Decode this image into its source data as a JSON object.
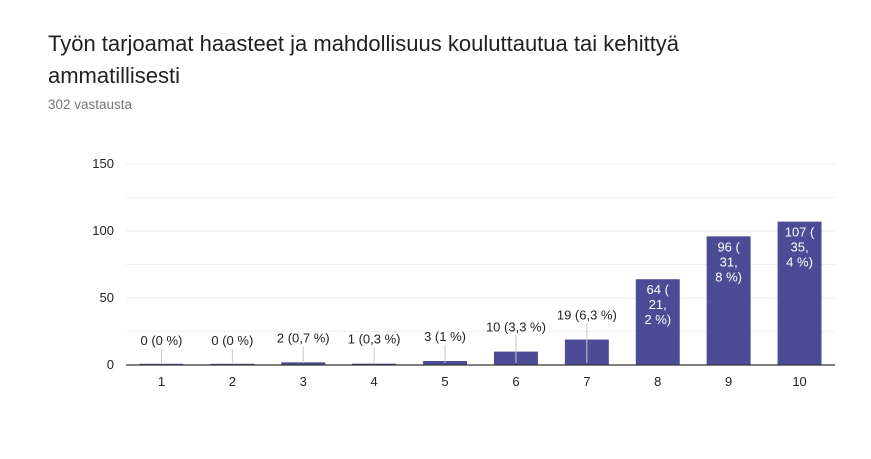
{
  "header": {
    "title": "Työn tarjoamat haasteet ja mahdollisuus kouluttautua tai kehittyä ammatillisesti",
    "response_count": "302 vastausta"
  },
  "colors": {
    "bar": "#4c4c96",
    "grid": "#ebebeb",
    "axis": "#333333",
    "label_dark": "#222222",
    "label_light": "#ffffff"
  },
  "chart_data": {
    "type": "bar",
    "categories": [
      "1",
      "2",
      "3",
      "4",
      "5",
      "6",
      "7",
      "8",
      "9",
      "10"
    ],
    "values": [
      0,
      0,
      2,
      1,
      3,
      10,
      19,
      64,
      96,
      107
    ],
    "data_labels": [
      [
        "0 (0 %)"
      ],
      [
        "0 (0 %)"
      ],
      [
        "2 (0,7 %)"
      ],
      [
        "1 (0,3 %)"
      ],
      [
        "3 (1 %)"
      ],
      [
        "10 (3,3 %)"
      ],
      [
        "19 (6,3 %)"
      ],
      [
        "64 (",
        "21,",
        "2 %)"
      ],
      [
        "96 (",
        "31,",
        "8 %)"
      ],
      [
        "107 (",
        "35,",
        "4 %)"
      ]
    ],
    "ylim": [
      0,
      150
    ],
    "yticks": [
      "0",
      "50",
      "100",
      "150"
    ],
    "grid": true
  }
}
